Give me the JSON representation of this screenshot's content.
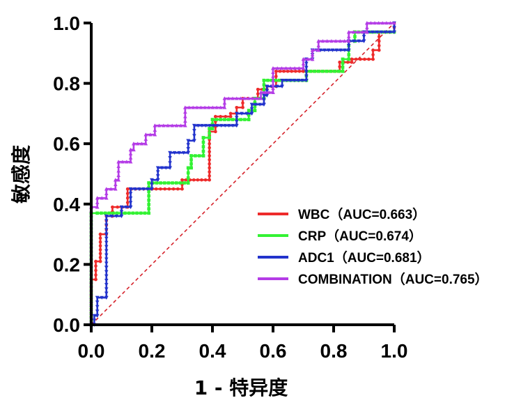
{
  "chart_data": {
    "type": "line",
    "title": "",
    "xlabel": "1 - 特异度",
    "ylabel": "敏感度",
    "xlim": [
      0,
      1
    ],
    "ylim": [
      0,
      1
    ],
    "x_ticks": [
      "0.0",
      "0.2",
      "0.4",
      "0.6",
      "0.8",
      "1.0"
    ],
    "y_ticks": [
      "0.0",
      "0.2",
      "0.4",
      "0.6",
      "0.8",
      "1.0"
    ],
    "legend_position": "bottom-right",
    "reference_line": {
      "name": "diagonal",
      "color": "#d6212a",
      "style": "dashed",
      "points": [
        [
          0,
          0
        ],
        [
          1,
          1
        ]
      ]
    },
    "series": [
      {
        "name": "WBC（AUC=0.663）",
        "color": "#ee2b2b",
        "marker": "circle",
        "points": [
          [
            0,
            0
          ],
          [
            0,
            0.15
          ],
          [
            0.015,
            0.15
          ],
          [
            0.015,
            0.21
          ],
          [
            0.03,
            0.21
          ],
          [
            0.03,
            0.3
          ],
          [
            0.05,
            0.3
          ],
          [
            0.05,
            0.36
          ],
          [
            0.07,
            0.36
          ],
          [
            0.07,
            0.39
          ],
          [
            0.12,
            0.39
          ],
          [
            0.12,
            0.45
          ],
          [
            0.2,
            0.45
          ],
          [
            0.2,
            0.45
          ],
          [
            0.3,
            0.45
          ],
          [
            0.3,
            0.48
          ],
          [
            0.39,
            0.48
          ],
          [
            0.39,
            0.64
          ],
          [
            0.41,
            0.64
          ],
          [
            0.41,
            0.69
          ],
          [
            0.46,
            0.69
          ],
          [
            0.46,
            0.7
          ],
          [
            0.48,
            0.7
          ],
          [
            0.48,
            0.72
          ],
          [
            0.5,
            0.72
          ],
          [
            0.5,
            0.75
          ],
          [
            0.55,
            0.75
          ],
          [
            0.55,
            0.78
          ],
          [
            0.58,
            0.78
          ],
          [
            0.58,
            0.79
          ],
          [
            0.61,
            0.79
          ],
          [
            0.61,
            0.84
          ],
          [
            0.7,
            0.84
          ],
          [
            0.7,
            0.84
          ],
          [
            0.82,
            0.84
          ],
          [
            0.82,
            0.87
          ],
          [
            0.86,
            0.87
          ],
          [
            0.86,
            0.88
          ],
          [
            0.93,
            0.88
          ],
          [
            0.93,
            0.91
          ],
          [
            0.95,
            0.91
          ],
          [
            0.95,
            0.97
          ],
          [
            1,
            0.97
          ],
          [
            1,
            1
          ]
        ]
      },
      {
        "name": "CRP（AUC=0.674）",
        "color": "#33f233",
        "marker": "square",
        "points": [
          [
            0,
            0
          ],
          [
            0,
            0.37
          ],
          [
            0.02,
            0.37
          ],
          [
            0.19,
            0.37
          ],
          [
            0.19,
            0.47
          ],
          [
            0.32,
            0.47
          ],
          [
            0.32,
            0.52
          ],
          [
            0.33,
            0.52
          ],
          [
            0.33,
            0.56
          ],
          [
            0.37,
            0.56
          ],
          [
            0.37,
            0.62
          ],
          [
            0.39,
            0.62
          ],
          [
            0.39,
            0.65
          ],
          [
            0.4,
            0.65
          ],
          [
            0.4,
            0.68
          ],
          [
            0.52,
            0.68
          ],
          [
            0.52,
            0.71
          ],
          [
            0.54,
            0.71
          ],
          [
            0.54,
            0.75
          ],
          [
            0.57,
            0.75
          ],
          [
            0.57,
            0.81
          ],
          [
            0.71,
            0.81
          ],
          [
            0.71,
            0.84
          ],
          [
            0.83,
            0.84
          ],
          [
            0.83,
            0.88
          ],
          [
            0.85,
            0.88
          ],
          [
            0.85,
            0.94
          ],
          [
            0.87,
            0.94
          ],
          [
            0.87,
            0.97
          ],
          [
            1,
            0.97
          ]
        ]
      },
      {
        "name": "ADC1（AUC=0.681）",
        "color": "#2233cc",
        "marker": "triangle-down",
        "points": [
          [
            0,
            0
          ],
          [
            0.01,
            0
          ],
          [
            0.01,
            0.03
          ],
          [
            0.02,
            0.03
          ],
          [
            0.02,
            0.09
          ],
          [
            0.05,
            0.09
          ],
          [
            0.05,
            0.19
          ],
          [
            0.05,
            0.3
          ],
          [
            0.05,
            0.36
          ],
          [
            0.1,
            0.36
          ],
          [
            0.1,
            0.39
          ],
          [
            0.13,
            0.39
          ],
          [
            0.13,
            0.45
          ],
          [
            0.2,
            0.45
          ],
          [
            0.2,
            0.48
          ],
          [
            0.22,
            0.48
          ],
          [
            0.22,
            0.52
          ],
          [
            0.26,
            0.52
          ],
          [
            0.26,
            0.57
          ],
          [
            0.32,
            0.57
          ],
          [
            0.32,
            0.61
          ],
          [
            0.34,
            0.61
          ],
          [
            0.34,
            0.66
          ],
          [
            0.48,
            0.66
          ],
          [
            0.48,
            0.7
          ],
          [
            0.53,
            0.7
          ],
          [
            0.53,
            0.73
          ],
          [
            0.57,
            0.73
          ],
          [
            0.57,
            0.76
          ],
          [
            0.58,
            0.76
          ],
          [
            0.58,
            0.79
          ],
          [
            0.63,
            0.79
          ],
          [
            0.63,
            0.81
          ],
          [
            0.71,
            0.81
          ],
          [
            0.71,
            0.88
          ],
          [
            0.73,
            0.88
          ],
          [
            0.73,
            0.91
          ],
          [
            0.85,
            0.91
          ],
          [
            0.85,
            0.94
          ],
          [
            0.9,
            0.94
          ],
          [
            0.9,
            0.97
          ],
          [
            1,
            0.97
          ],
          [
            1,
            1
          ]
        ]
      },
      {
        "name": "COMBINATION（AUC=0.765）",
        "color": "#b43ce6",
        "marker": "triangle-up",
        "points": [
          [
            0,
            0
          ],
          [
            0,
            0.39
          ],
          [
            0.02,
            0.39
          ],
          [
            0.02,
            0.42
          ],
          [
            0.05,
            0.42
          ],
          [
            0.05,
            0.45
          ],
          [
            0.08,
            0.45
          ],
          [
            0.08,
            0.48
          ],
          [
            0.09,
            0.48
          ],
          [
            0.09,
            0.54
          ],
          [
            0.13,
            0.54
          ],
          [
            0.13,
            0.58
          ],
          [
            0.14,
            0.58
          ],
          [
            0.14,
            0.6
          ],
          [
            0.18,
            0.6
          ],
          [
            0.18,
            0.63
          ],
          [
            0.21,
            0.63
          ],
          [
            0.21,
            0.66
          ],
          [
            0.31,
            0.66
          ],
          [
            0.31,
            0.72
          ],
          [
            0.44,
            0.72
          ],
          [
            0.44,
            0.75
          ],
          [
            0.56,
            0.75
          ],
          [
            0.56,
            0.77
          ],
          [
            0.6,
            0.77
          ],
          [
            0.6,
            0.85
          ],
          [
            0.7,
            0.85
          ],
          [
            0.7,
            0.88
          ],
          [
            0.73,
            0.88
          ],
          [
            0.73,
            0.91
          ],
          [
            0.75,
            0.91
          ],
          [
            0.75,
            0.94
          ],
          [
            0.85,
            0.94
          ],
          [
            0.85,
            0.97
          ],
          [
            0.91,
            0.97
          ],
          [
            0.91,
            1
          ],
          [
            1,
            1
          ]
        ]
      }
    ]
  }
}
